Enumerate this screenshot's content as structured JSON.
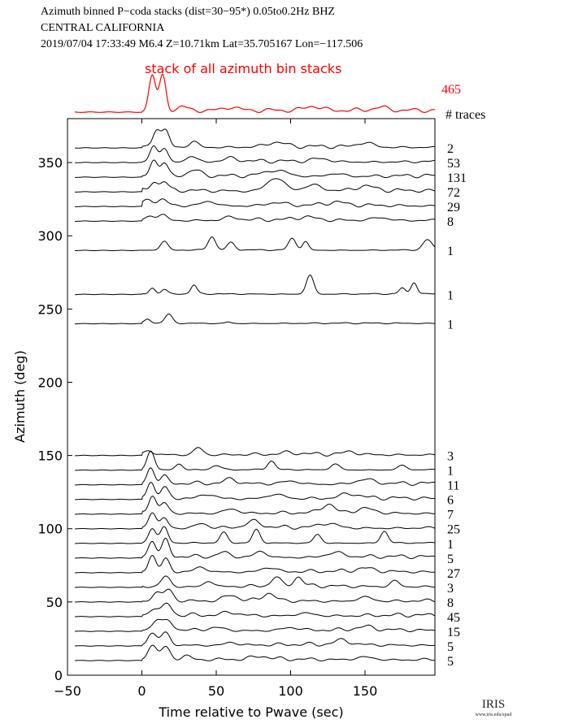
{
  "header": {
    "line1": "Azimuth binned P−coda stacks (dist=30−95*)  0.05to0.2Hz  BHZ",
    "line2": "CENTRAL CALIFORNIA",
    "line3": "2019/07/04  17:33:49  M6.4  Z=10.71km Lat=35.705167 Lon=−117.506"
  },
  "logo": {
    "name": "IRIS",
    "url_text": "www.iris.edu/spud"
  },
  "colors": {
    "stack": "#ff0000",
    "traces": "#000000"
  },
  "chart_data": {
    "type": "line",
    "xlabel": "Time relative to Pwave (sec)",
    "ylabel": "Azimuth (deg)",
    "xlim": [
      -50,
      197
    ],
    "ylim": [
      0,
      380
    ],
    "xticks": [
      -50,
      0,
      50,
      100,
      150
    ],
    "yticks": [
      0,
      50,
      100,
      150,
      200,
      250,
      300,
      350
    ],
    "stack": {
      "label": "stack of all azimuth bin stacks",
      "count": "465",
      "peaks": [
        [
          7,
          1.0,
          2.2
        ],
        [
          14,
          0.95,
          2.2
        ],
        [
          27,
          0.12,
          2.5
        ],
        [
          60,
          0.1,
          4
        ],
        [
          115,
          0.12,
          5
        ],
        [
          160,
          0.08,
          5
        ]
      ]
    },
    "counts_header": "# traces",
    "series": [
      {
        "azimuth": 360,
        "count": "2",
        "peaks": [
          [
            10,
            12,
            2.5
          ],
          [
            16,
            11,
            2.5
          ],
          [
            35,
            4,
            3
          ],
          [
            90,
            3,
            6
          ],
          [
            150,
            3,
            5
          ]
        ]
      },
      {
        "azimuth": 350,
        "count": "53",
        "peaks": [
          [
            8,
            11,
            2.5
          ],
          [
            15,
            9,
            2.5
          ],
          [
            33,
            4,
            3
          ],
          [
            60,
            2,
            5
          ],
          [
            120,
            2,
            6
          ]
        ]
      },
      {
        "azimuth": 340,
        "count": "131",
        "peaks": [
          [
            8,
            11,
            2.5
          ],
          [
            15,
            9,
            2.5
          ],
          [
            35,
            4,
            4
          ],
          [
            90,
            4,
            8
          ],
          [
            130,
            2,
            6
          ]
        ]
      },
      {
        "azimuth": 330,
        "count": "72",
        "peaks": [
          [
            8,
            6,
            2.5
          ],
          [
            15,
            6,
            2.5
          ],
          [
            90,
            9,
            6
          ],
          [
            115,
            4,
            6
          ],
          [
            150,
            3,
            6
          ]
        ]
      },
      {
        "azimuth": 320,
        "count": "29",
        "peaks": [
          [
            5,
            4,
            3
          ],
          [
            14,
            4,
            3
          ],
          [
            45,
            3,
            5
          ],
          [
            90,
            2,
            6
          ],
          [
            130,
            2,
            6
          ]
        ]
      },
      {
        "azimuth": 310,
        "count": "8",
        "peaks": [
          [
            6,
            3,
            3
          ],
          [
            14,
            4,
            3
          ],
          [
            60,
            2,
            5
          ],
          [
            110,
            2,
            6
          ],
          [
            160,
            2,
            6
          ]
        ]
      },
      {
        "azimuth": 290,
        "count": "1",
        "peaks": [
          [
            15,
            6,
            2.5
          ],
          [
            47,
            9,
            2.5
          ],
          [
            60,
            5,
            2.5
          ],
          [
            101,
            8,
            2.5
          ],
          [
            110,
            6,
            2
          ],
          [
            192,
            7,
            3
          ]
        ]
      },
      {
        "azimuth": 260,
        "count": "1",
        "peaks": [
          [
            7,
            4,
            2
          ],
          [
            15,
            3,
            2
          ],
          [
            35,
            6,
            2
          ],
          [
            113,
            13,
            2.5
          ],
          [
            175,
            4,
            2
          ],
          [
            183,
            8,
            2
          ]
        ]
      },
      {
        "azimuth": 240,
        "count": "1",
        "peaks": [
          [
            4,
            3,
            2
          ],
          [
            18,
            6,
            2.5
          ],
          [
            58,
            1,
            2
          ]
        ]
      },
      {
        "azimuth": 150,
        "count": "3",
        "peaks": [
          [
            5,
            3,
            2.5
          ],
          [
            38,
            5,
            3
          ],
          [
            100,
            1,
            5
          ],
          [
            140,
            2,
            4
          ]
        ]
      },
      {
        "azimuth": 140,
        "count": "1",
        "peaks": [
          [
            6,
            13,
            2.5
          ],
          [
            25,
            4,
            2.5
          ],
          [
            50,
            3,
            3
          ],
          [
            87,
            6,
            2.5
          ],
          [
            130,
            4,
            3
          ],
          [
            175,
            3,
            3
          ]
        ]
      },
      {
        "azimuth": 130,
        "count": "11",
        "peaks": [
          [
            6,
            11,
            2.5
          ],
          [
            15,
            5,
            2.5
          ],
          [
            60,
            3,
            4
          ],
          [
            100,
            2,
            6
          ],
          [
            150,
            3,
            6
          ]
        ]
      },
      {
        "azimuth": 120,
        "count": "6",
        "peaks": [
          [
            6,
            11,
            2.5
          ],
          [
            15,
            7,
            2.5
          ],
          [
            45,
            3,
            4
          ],
          [
            90,
            3,
            6
          ],
          [
            140,
            3,
            6
          ]
        ]
      },
      {
        "azimuth": 110,
        "count": "7",
        "peaks": [
          [
            7,
            12,
            2.5
          ],
          [
            15,
            7,
            2.5
          ],
          [
            60,
            3,
            5
          ],
          [
            125,
            6,
            4
          ],
          [
            150,
            3,
            6
          ]
        ]
      },
      {
        "azimuth": 100,
        "count": "25",
        "peaks": [
          [
            7,
            11,
            2.5
          ],
          [
            15,
            7,
            2.5
          ],
          [
            40,
            3,
            4
          ],
          [
            75,
            4,
            5
          ],
          [
            125,
            3,
            6
          ]
        ]
      },
      {
        "azimuth": 90,
        "count": "1",
        "peaks": [
          [
            7,
            10,
            2.5
          ],
          [
            15,
            11,
            2.5
          ],
          [
            55,
            7,
            2.5
          ],
          [
            77,
            9,
            2.5
          ],
          [
            118,
            6,
            2.5
          ],
          [
            163,
            8,
            2.5
          ]
        ]
      },
      {
        "azimuth": 80,
        "count": "5",
        "peaks": [
          [
            7,
            11,
            2.5
          ],
          [
            16,
            11,
            2.5
          ],
          [
            55,
            3,
            4
          ],
          [
            80,
            4,
            4
          ],
          [
            130,
            3,
            6
          ]
        ]
      },
      {
        "azimuth": 70,
        "count": "27",
        "peaks": [
          [
            7,
            11,
            2.5
          ],
          [
            16,
            8,
            2.5
          ],
          [
            40,
            3,
            4
          ],
          [
            85,
            3,
            5
          ],
          [
            150,
            2,
            6
          ]
        ]
      },
      {
        "azimuth": 60,
        "count": "3",
        "peaks": [
          [
            16,
            7,
            3
          ],
          [
            45,
            4,
            3
          ],
          [
            90,
            6,
            3
          ],
          [
            105,
            6,
            3
          ],
          [
            170,
            4,
            3
          ]
        ]
      },
      {
        "azimuth": 50,
        "count": "8",
        "peaks": [
          [
            10,
            6,
            3
          ],
          [
            18,
            8,
            3
          ],
          [
            60,
            4,
            4
          ],
          [
            85,
            5,
            4
          ],
          [
            150,
            3,
            5
          ]
        ]
      },
      {
        "azimuth": 40,
        "count": "45",
        "peaks": [
          [
            8,
            5,
            3
          ],
          [
            17,
            8,
            3
          ],
          [
            60,
            2,
            5
          ],
          [
            110,
            2,
            6
          ]
        ]
      },
      {
        "azimuth": 30,
        "count": "15",
        "peaks": [
          [
            10,
            7,
            3
          ],
          [
            18,
            6,
            3
          ],
          [
            50,
            2,
            5
          ],
          [
            100,
            2,
            6
          ],
          [
            150,
            2,
            6
          ]
        ]
      },
      {
        "azimuth": 20,
        "count": "5",
        "peaks": [
          [
            7,
            8,
            3
          ],
          [
            16,
            8,
            3
          ],
          [
            60,
            2,
            4
          ],
          [
            135,
            3,
            5
          ]
        ]
      },
      {
        "azimuth": 10,
        "count": "5",
        "peaks": [
          [
            7,
            10,
            3
          ],
          [
            16,
            9,
            3
          ],
          [
            30,
            3,
            3
          ],
          [
            80,
            2,
            5
          ],
          [
            150,
            2,
            6
          ]
        ]
      }
    ]
  }
}
